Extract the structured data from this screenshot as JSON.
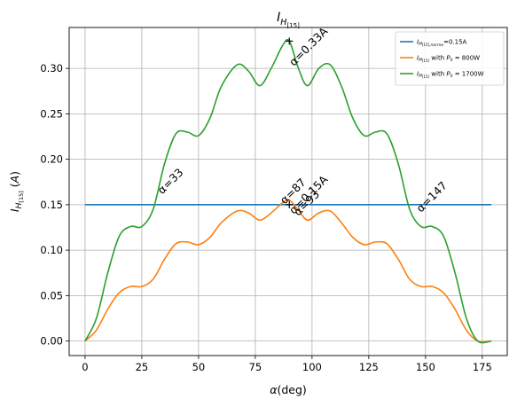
{
  "chart_data": {
    "type": "line",
    "title": "I_H[15]",
    "xlabel": "α(deg)",
    "ylabel": "I_H[15] (A)",
    "xlim": [
      -7,
      186
    ],
    "ylim": [
      -0.016,
      0.345
    ],
    "xticks": [
      0,
      25,
      50,
      75,
      100,
      125,
      150,
      175
    ],
    "yticks": [
      0.0,
      0.05,
      0.1,
      0.15,
      0.2,
      0.25,
      0.3
    ],
    "ytick_labels": [
      "0.00",
      "0.05",
      "0.10",
      "0.15",
      "0.20",
      "0.25",
      "0.30"
    ],
    "grid": true,
    "legend_position": "top-right",
    "series": [
      {
        "name": "I_H[15],norme=0.15A",
        "color": "#1f77b4",
        "x": [
          0,
          179
        ],
        "y": [
          0.15,
          0.15
        ]
      },
      {
        "name": "I_H[15] with P0 = 800W",
        "color": "#ff7f0e",
        "x": [
          0,
          5,
          10,
          15,
          20,
          25,
          30,
          35,
          40,
          45,
          50,
          55,
          60,
          67,
          72,
          77,
          82,
          87,
          90,
          94,
          98,
          103,
          108,
          113,
          118,
          123,
          128,
          133,
          138,
          143,
          148,
          153,
          158,
          163,
          168,
          173,
          179
        ],
        "y": [
          0.0,
          0.012,
          0.035,
          0.053,
          0.06,
          0.06,
          0.068,
          0.09,
          0.107,
          0.109,
          0.106,
          0.114,
          0.13,
          0.143,
          0.141,
          0.133,
          0.141,
          0.152,
          0.155,
          0.144,
          0.133,
          0.141,
          0.143,
          0.13,
          0.114,
          0.106,
          0.109,
          0.107,
          0.09,
          0.068,
          0.06,
          0.06,
          0.053,
          0.035,
          0.012,
          0.0,
          0.0
        ]
      },
      {
        "name": "I_H[15] with P0 = 1700W",
        "color": "#2ca02c",
        "x": [
          0,
          5,
          10,
          15,
          20,
          25,
          30,
          35,
          40,
          45,
          50,
          55,
          60,
          67,
          72,
          77,
          82,
          87,
          90,
          94,
          98,
          103,
          108,
          113,
          118,
          123,
          128,
          133,
          138,
          143,
          148,
          153,
          158,
          163,
          168,
          173,
          179
        ],
        "y": [
          0.0,
          0.025,
          0.075,
          0.115,
          0.126,
          0.126,
          0.145,
          0.195,
          0.228,
          0.23,
          0.226,
          0.245,
          0.28,
          0.304,
          0.297,
          0.281,
          0.3,
          0.325,
          0.33,
          0.3,
          0.281,
          0.3,
          0.304,
          0.28,
          0.245,
          0.226,
          0.23,
          0.228,
          0.195,
          0.145,
          0.126,
          0.126,
          0.115,
          0.075,
          0.025,
          0.0,
          0.0
        ]
      }
    ],
    "markers": [
      {
        "x": 90,
        "y": 0.33,
        "symbol": "+"
      },
      {
        "x": 90,
        "y": 0.15,
        "symbol": "+"
      }
    ],
    "annotations": [
      {
        "text": "α=0.33A",
        "x": 92,
        "y": 0.302
      },
      {
        "text": "α=33",
        "x": 34,
        "y": 0.161
      },
      {
        "text": "α=87",
        "x": 88,
        "y": 0.15
      },
      {
        "text": "α=93",
        "x": 94,
        "y": 0.137
      },
      {
        "text": "α=0.15A",
        "x": 92,
        "y": 0.139
      },
      {
        "text": "α=147",
        "x": 148,
        "y": 0.141
      }
    ]
  }
}
